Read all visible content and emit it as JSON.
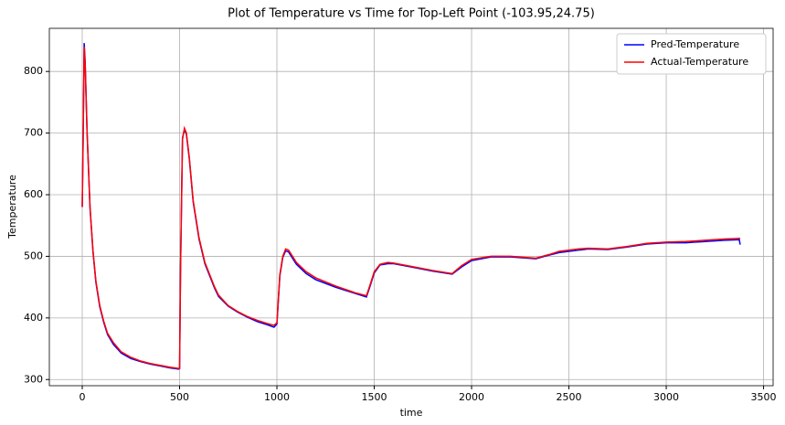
{
  "chart_data": {
    "type": "line",
    "title": "Plot of Temperature vs Time for Top-Left Point (-103.95,24.75)",
    "x_label": "time",
    "y_label": "Temperature",
    "x": [
      0,
      5,
      10,
      15,
      25,
      40,
      55,
      70,
      90,
      110,
      130,
      160,
      200,
      250,
      300,
      350,
      400,
      450,
      495,
      500,
      505,
      515,
      525,
      535,
      550,
      570,
      600,
      630,
      680,
      700,
      750,
      800,
      850,
      900,
      950,
      985,
      1000,
      1015,
      1030,
      1045,
      1060,
      1080,
      1100,
      1150,
      1200,
      1300,
      1400,
      1460,
      1480,
      1500,
      1530,
      1570,
      1600,
      1700,
      1800,
      1900,
      1950,
      2000,
      2100,
      2200,
      2330,
      2400,
      2450,
      2550,
      2600,
      2700,
      2800,
      2900,
      3000,
      3100,
      3200,
      3300,
      3375,
      3380
    ],
    "series": [
      {
        "name": "Pred-Temperature",
        "color": "#0000ff",
        "values": [
          580,
          705,
          846,
          815,
          700,
          578,
          508,
          458,
          418,
          393,
          373,
          357,
          343,
          334,
          329,
          325,
          322,
          319,
          317,
          318,
          485,
          692,
          706,
          698,
          658,
          588,
          528,
          488,
          448,
          435,
          419,
          409,
          401,
          394,
          389,
          385,
          390,
          468,
          498,
          509,
          507,
          497,
          487,
          472,
          462,
          450,
          440,
          434,
          453,
          473,
          486,
          488,
          488,
          482,
          476,
          471,
          483,
          493,
          499,
          499,
          496,
          502,
          506,
          510,
          512,
          511,
          515,
          520,
          522,
          522,
          524,
          526,
          527,
          519
        ]
      },
      {
        "name": "Actual-Temperature",
        "color": "#ff0000",
        "values": [
          580,
          700,
          840,
          810,
          700,
          580,
          510,
          460,
          420,
          395,
          375,
          360,
          345,
          336,
          330,
          326,
          323,
          320,
          318,
          318,
          480,
          690,
          708,
          700,
          660,
          590,
          530,
          490,
          450,
          437,
          420,
          410,
          402,
          396,
          391,
          388,
          392,
          470,
          500,
          512,
          510,
          500,
          490,
          475,
          465,
          452,
          441,
          436,
          455,
          475,
          487,
          490,
          489,
          483,
          477,
          472,
          485,
          495,
          500,
          500,
          497,
          503,
          508,
          512,
          513,
          512,
          516,
          521,
          523,
          524,
          526,
          528,
          529,
          529
        ]
      }
    ],
    "xlim": [
      -169,
      3549
    ],
    "ylim": [
      290,
      870
    ],
    "xticks": [
      0,
      500,
      1000,
      1500,
      2000,
      2500,
      3000,
      3500
    ],
    "yticks": [
      300,
      400,
      500,
      600,
      700,
      800
    ],
    "grid": true,
    "legend": "upper right"
  }
}
